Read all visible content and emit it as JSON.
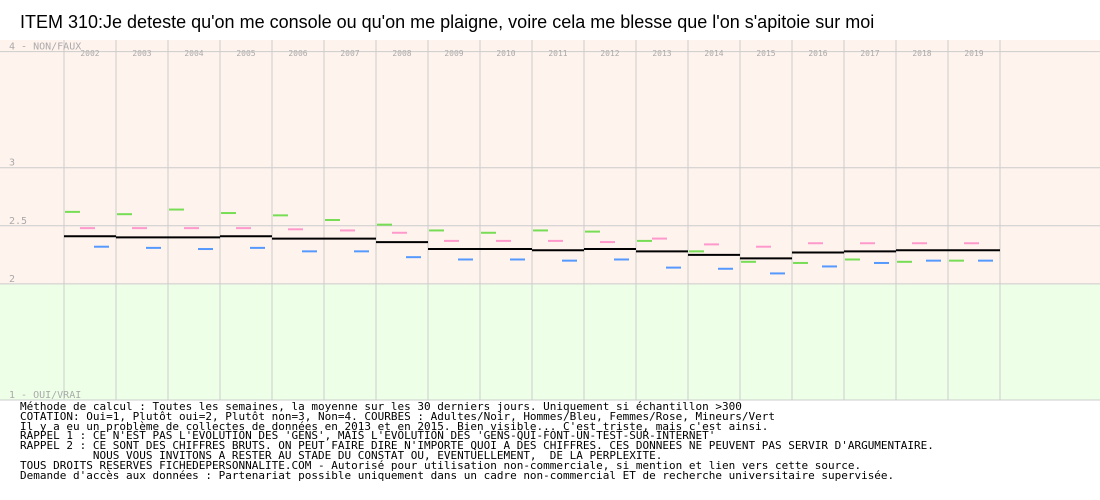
{
  "title": "ITEM 310:Je deteste qu'on me console ou qu'on me plaigne, voire cela me blesse que l'on s'apitoie sur moi",
  "chart_data": {
    "type": "line",
    "categories": [
      "2002",
      "2003",
      "2004",
      "2005",
      "2006",
      "2007",
      "2008",
      "2009",
      "2010",
      "2011",
      "2012",
      "2013",
      "2014",
      "2015",
      "2016",
      "2017",
      "2018",
      "2019"
    ],
    "ylim": [
      1,
      4.1
    ],
    "y_ticks": [
      {
        "value": 4,
        "label": "4 - NON/FAUX"
      },
      {
        "value": 3,
        "label": "3"
      },
      {
        "value": 2.5,
        "label": "2.5"
      },
      {
        "value": 2,
        "label": "2"
      },
      {
        "value": 1,
        "label": "1 - OUI/VRAI"
      }
    ],
    "bands": [
      {
        "from": 2.5,
        "to": 4.1,
        "color": "#fff3ee"
      },
      {
        "from": 2.0,
        "to": 2.5,
        "color": "#fff3ee"
      },
      {
        "from": 1.0,
        "to": 2.0,
        "color": "#eeffe8"
      }
    ],
    "grid": true,
    "series": [
      {
        "color": "#000000",
        "values": [
          2.41,
          2.4,
          2.4,
          2.41,
          2.39,
          2.39,
          2.36,
          2.3,
          2.3,
          2.29,
          2.3,
          2.28,
          2.25,
          2.22,
          2.27,
          2.28,
          2.29,
          2.29
        ]
      },
      {
        "color": "#ff99cc",
        "values": [
          2.48,
          2.48,
          2.48,
          2.48,
          2.47,
          2.46,
          2.44,
          2.37,
          2.37,
          2.37,
          2.36,
          2.39,
          2.34,
          2.32,
          2.35,
          2.35,
          2.35,
          2.35
        ]
      },
      {
        "color": "#5599ff",
        "values": [
          2.32,
          2.31,
          2.3,
          2.31,
          2.28,
          2.28,
          2.23,
          2.21,
          2.21,
          2.2,
          2.21,
          2.14,
          2.13,
          2.09,
          2.15,
          2.18,
          2.2,
          2.2
        ]
      },
      {
        "color": "#77dd55",
        "values": [
          2.62,
          2.6,
          2.64,
          2.61,
          2.59,
          2.55,
          2.51,
          2.46,
          2.44,
          2.46,
          2.45,
          2.37,
          2.28,
          2.19,
          2.18,
          2.21,
          2.19,
          2.2
        ]
      }
    ]
  },
  "notes": [
    "Méthode de calcul : Toutes les semaines, la moyenne sur les 30 derniers jours. Uniquement si échantillon >300",
    "COTATION: Oui=1, Plutôt oui=2, Plutôt non=3, Non=4. COURBES : Adultes/Noir, Hommes/Bleu, Femmes/Rose, Mineurs/Vert",
    "Il y a eu un problème de collectes de données en 2013 et en 2015. Bien visible... C'est triste, mais c'est ainsi.",
    "RAPPEL 1 : CE N'EST PAS L'EVOLUTION DES 'GENS', MAIS L'EVOLUTION DES 'GENS-QUI-FONT-UN-TEST-SUR-INTERNET'",
    "RAPPEL 2 : CE SONT DES CHIFFRES BRUTS. ON PEUT FAIRE DIRE N'IMPORTE QUOI A DES CHIFFRES. CES DONNEES NE PEUVENT PAS SERVIR D'ARGUMENTAIRE.",
    "           NOUS VOUS INVITONS A RESTER AU STADE DU CONSTAT OU, EVENTUELLEMENT,  DE LA PERPLEXITE.",
    "TOUS DROITS RESERVES FICHEDEPERSONNALITE.COM - Autorisé pour utilisation non-commerciale, si mention et lien vers cette source.",
    "Demande d'accès aux données : Partenariat possible uniquement dans un cadre non-commercial ET de recherche universitaire supervisée."
  ]
}
